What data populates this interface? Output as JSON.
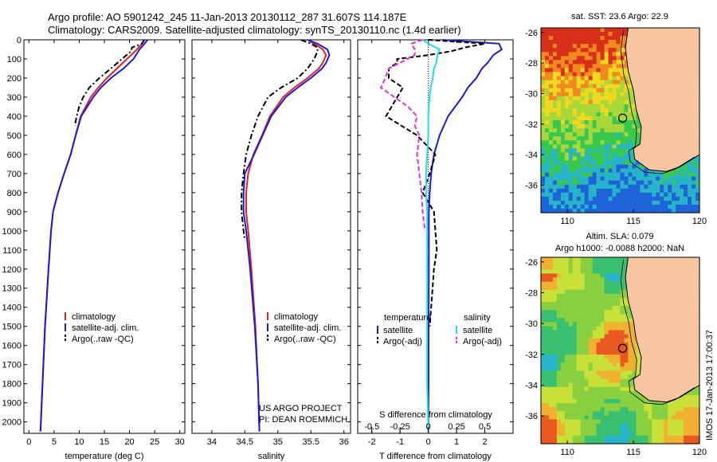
{
  "header": {
    "line1": "Argo profile: AO 5901242_245 11-Jan-2013 20130112_287 31.607S 114.187E",
    "line2": "Climatology: CARS2009. Satellite-adjusted climatology: synTS_20130110.nc (1.4d earlier)"
  },
  "colors": {
    "climatology": "#e8201a",
    "satellite": "#1a1adc",
    "argo": "#000000",
    "salinity_satellite": "#22dde8",
    "salinity_argo": "#e030e0",
    "land": "#f7c6a0"
  },
  "depth_axis": {
    "ticks": [
      "0",
      "100",
      "200",
      "300",
      "400",
      "500",
      "600",
      "700",
      "800",
      "900",
      "1000",
      "1100",
      "1200",
      "1300",
      "1400",
      "1500",
      "1600",
      "1700",
      "1800",
      "1900",
      "2000"
    ]
  },
  "chart_data": [
    {
      "type": "line",
      "name": "temperature-profile",
      "xlabel": "temperature (deg C)",
      "xlim": [
        -1,
        31
      ],
      "xticks": [
        "0",
        "5",
        "10",
        "15",
        "20",
        "25",
        "30"
      ],
      "ylim": [
        2060,
        0
      ],
      "legend": [
        "climatology",
        "satellite-adj. clim.",
        "Argo(..raw -QC)"
      ],
      "legend_position": "lower-middle",
      "series": [
        {
          "name": "climatology",
          "depth": [
            0,
            20,
            50,
            100,
            150,
            200,
            250,
            300,
            400,
            500,
            600,
            700,
            800,
            900,
            1000,
            1200,
            1500,
            1800,
            2050
          ],
          "values": [
            23,
            22.5,
            21.5,
            19.5,
            17.5,
            15.5,
            13.8,
            12.3,
            10.3,
            9.3,
            8.3,
            7.0,
            5.8,
            4.8,
            4.4,
            3.9,
            3.2,
            2.7,
            2.3
          ]
        },
        {
          "name": "satellite-adj. clim.",
          "depth": [
            0,
            20,
            50,
            100,
            150,
            200,
            250,
            300,
            400,
            500,
            600,
            700,
            800,
            900,
            1000,
            1200,
            1500,
            1800,
            2050
          ],
          "values": [
            23.6,
            23,
            22,
            20.8,
            18.8,
            16.3,
            14.3,
            12.8,
            10.4,
            9.3,
            8.3,
            7.0,
            5.8,
            4.8,
            4.4,
            3.9,
            3.2,
            2.7,
            2.3
          ]
        },
        {
          "name": "Argo(..raw -QC)",
          "depth": [
            0,
            20,
            40,
            60,
            100,
            150,
            200,
            250,
            300,
            350,
            400,
            450
          ],
          "values": [
            22.9,
            22.5,
            20.5,
            20.3,
            18.5,
            16.3,
            14.0,
            12.0,
            10.8,
            10.0,
            9.5,
            9.1
          ]
        }
      ]
    },
    {
      "type": "line",
      "name": "salinity-profile",
      "xlabel": "salinity",
      "xlim": [
        33.7,
        36.1
      ],
      "xticks": [
        "34",
        "34.5",
        "35",
        "35.5",
        "36"
      ],
      "ylim": [
        2060,
        0
      ],
      "legend": [
        "climatology",
        "satellite-adj. clim.",
        "Argo(..raw -QC)"
      ],
      "legend_position": "lower-right",
      "annotations": [
        "US ARGO PROJECT",
        "PI: DEAN ROEMMICH"
      ],
      "series": [
        {
          "name": "climatology",
          "depth": [
            0,
            20,
            50,
            80,
            120,
            150,
            200,
            250,
            300,
            400,
            500,
            600,
            700,
            800,
            900,
            1000,
            1200,
            1500,
            1800,
            2050
          ],
          "values": [
            35.45,
            35.55,
            35.68,
            35.73,
            35.68,
            35.62,
            35.45,
            35.25,
            35.08,
            34.88,
            34.76,
            34.63,
            34.55,
            34.52,
            34.52,
            34.55,
            34.6,
            34.66,
            34.7,
            34.72
          ]
        },
        {
          "name": "satellite-adj. clim.",
          "depth": [
            0,
            20,
            50,
            80,
            120,
            150,
            200,
            250,
            300,
            400,
            500,
            600,
            700,
            800,
            900,
            1000,
            1200,
            1500,
            1800,
            2050
          ],
          "values": [
            35.45,
            35.6,
            35.75,
            35.78,
            35.73,
            35.67,
            35.5,
            35.3,
            35.12,
            34.9,
            34.77,
            34.64,
            34.5,
            34.48,
            34.48,
            34.52,
            34.58,
            34.65,
            34.7,
            34.72
          ]
        },
        {
          "name": "Argo(..raw -QC)",
          "depth": [
            0,
            20,
            40,
            60,
            100,
            150,
            200,
            250,
            300,
            400,
            500,
            600,
            700,
            800,
            900,
            1000,
            1050
          ],
          "values": [
            35.35,
            35.5,
            35.6,
            35.6,
            35.55,
            35.45,
            35.3,
            35.05,
            34.85,
            34.7,
            34.6,
            34.52,
            34.48,
            34.45,
            34.45,
            34.48,
            34.5
          ]
        }
      ]
    },
    {
      "type": "line",
      "name": "difference-profile",
      "xlabel": "T difference from climatology",
      "xlim": [
        -2.5,
        3
      ],
      "xticks": [
        "-2",
        "-1",
        "0",
        "1",
        "2"
      ],
      "top_xlabel": "S difference from climatology",
      "top_xticks": [
        "-0.5",
        "-0.25",
        "0",
        "0.25",
        "0.5"
      ],
      "ylim": [
        2060,
        0
      ],
      "legend": {
        "temperature_header": "temperature",
        "salinity_header": "salinity",
        "temperature": [
          "satellite",
          "Argo(-adj)"
        ],
        "salinity": [
          "satellite",
          "Argo(-adj)"
        ]
      },
      "series": [
        {
          "name": "temperature satellite",
          "depth": [
            0,
            20,
            50,
            80,
            120,
            150,
            200,
            250,
            300,
            400,
            500,
            600,
            700,
            800,
            900,
            1000,
            1200,
            1500,
            1800,
            2050
          ],
          "values": [
            0.5,
            2.5,
            2.6,
            2.3,
            2.1,
            1.9,
            1.7,
            1.4,
            1.2,
            0.7,
            0.4,
            0.2,
            0.1,
            0.05,
            0.02,
            0.02,
            0.02,
            0.01,
            0.01,
            0.0
          ]
        },
        {
          "name": "temperature Argo(-adj)",
          "depth": [
            0,
            20,
            40,
            60,
            80,
            100,
            120,
            150,
            200,
            250,
            300,
            400,
            500,
            600,
            700,
            800,
            900,
            1000,
            1100,
            1200,
            1300,
            1400,
            1500
          ],
          "values": [
            0,
            2.0,
            1.3,
            0.8,
            0,
            -1.1,
            -1.1,
            -1.4,
            -1.4,
            -0.9,
            -1.1,
            -1.5,
            -0.4,
            0.25,
            0.05,
            -0.2,
            0.2,
            0.25,
            0.3,
            0.2,
            0.15,
            0.1,
            0.05
          ]
        },
        {
          "name": "salinity satellite",
          "depth": [
            0,
            20,
            50,
            80,
            120,
            150,
            200,
            250,
            300,
            400,
            500,
            600,
            700,
            800,
            900,
            1000,
            1200,
            1500,
            1800,
            2050
          ],
          "values": [
            -0.05,
            0.0,
            0.1,
            0.08,
            0.07,
            0.05,
            0.04,
            0.02,
            0.01,
            0.0,
            0.0,
            -0.01,
            -0.02,
            -0.02,
            -0.01,
            -0.01,
            -0.01,
            -0.01,
            -0.01,
            0.0
          ]
        },
        {
          "name": "salinity Argo(-adj)",
          "depth": [
            0,
            20,
            50,
            80,
            120,
            150,
            200,
            250,
            300,
            350,
            400,
            450,
            500,
            600,
            700,
            800,
            900,
            1000
          ],
          "values": [
            -0.05,
            -0.15,
            -0.12,
            -0.12,
            -0.25,
            -0.35,
            -0.38,
            -0.42,
            -0.3,
            -0.18,
            -0.1,
            -0.12,
            -0.08,
            -0.1,
            -0.08,
            -0.06,
            -0.05,
            -0.03
          ]
        }
      ]
    },
    {
      "type": "heatmap",
      "name": "sst-map",
      "title": "sat. SST: 23.6  Argo: 22.9",
      "xlim": [
        108,
        120
      ],
      "ylim": [
        -37.8,
        -25.7
      ],
      "xticks": [
        "110",
        "115",
        "120"
      ],
      "yticks": [
        "-26",
        "-28",
        "-30",
        "-32",
        "-34",
        "-36"
      ],
      "float_position": {
        "lon": 114.187,
        "lat": -31.607
      }
    },
    {
      "type": "heatmap",
      "name": "altimetry-map",
      "title": "Altim. SLA: 0.079",
      "subtitle": "Argo h1000: -0.0088 h2000: NaN",
      "xlim": [
        108,
        120
      ],
      "ylim": [
        -37.8,
        -25.7
      ],
      "xticks": [
        "110",
        "115",
        "120"
      ],
      "yticks": [
        "-26",
        "-28",
        "-30",
        "-32",
        "-34",
        "-36"
      ],
      "float_position": {
        "lon": 114.187,
        "lat": -31.607
      }
    }
  ],
  "footer_stamp": "IMOS 17-Jan-2013 17:00:37"
}
